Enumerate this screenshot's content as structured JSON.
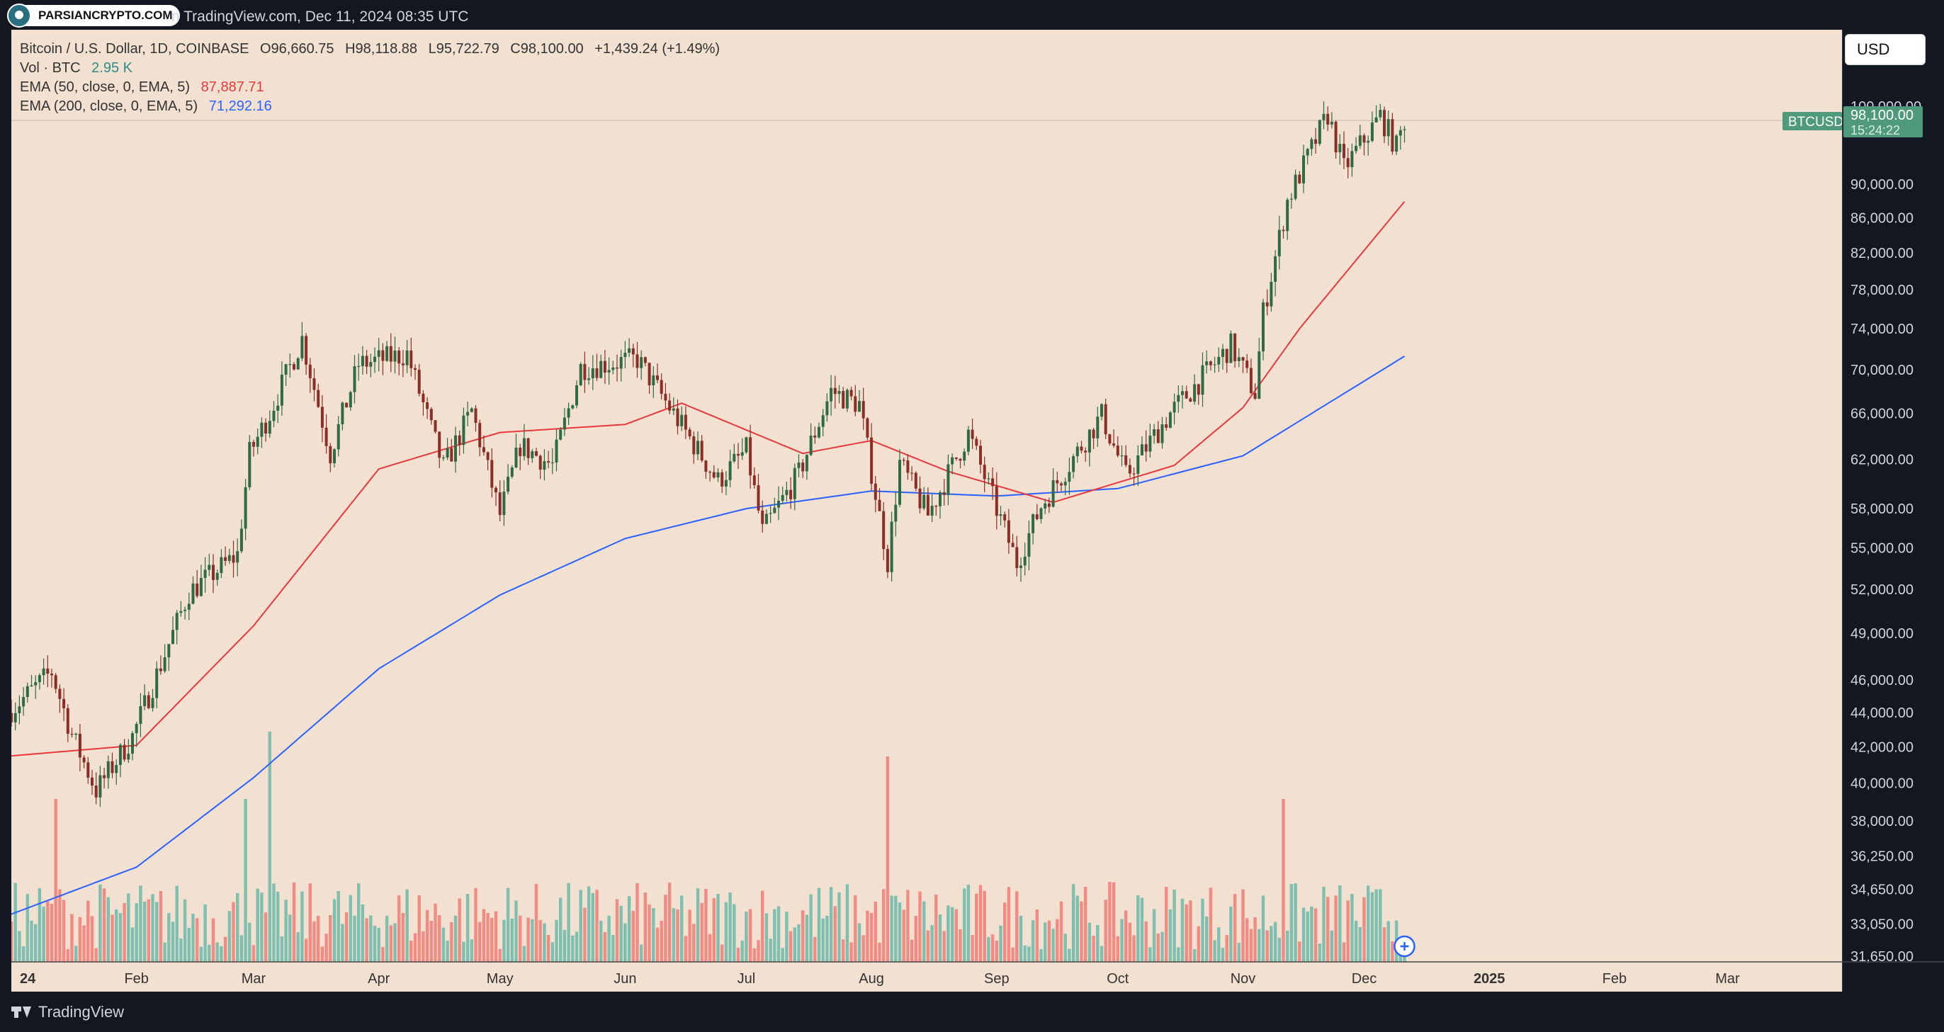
{
  "header": {
    "badge_text": "PARSIANCRYPTO.COM",
    "caption": "n TradingView.com, Dec 11, 2024 08:35 UTC"
  },
  "legend": {
    "symbol_line": "Bitcoin / U.S. Dollar, 1D, COINBASE",
    "ohlc": {
      "open": "O96,660.75",
      "high": "H98,118.88",
      "low": "L95,722.79",
      "close": "C98,100.00",
      "change": "+1,439.24 (+1.49%)"
    },
    "vol_label": "Vol · BTC",
    "vol_value": "2.95 K",
    "ema50_label": "EMA (50, close, 0, EMA, 5)",
    "ema50_value": "87,887.71",
    "ema200_label": "EMA (200, close, 0, EMA, 5)",
    "ema200_value": "71,292.16"
  },
  "currency_button": "USD",
  "price_tag": {
    "symbol": "BTCUSD",
    "price": "98,100.00",
    "countdown": "15:24:22"
  },
  "footer": {
    "brand": "TradingView"
  },
  "colors": {
    "background": "#f2e1d1",
    "up": "#26a69a",
    "down": "#ef5350",
    "candle_up": "#2e6b45",
    "candle_down": "#8b2e26",
    "ema50": "#e8383d",
    "ema200": "#2962ff",
    "vol_up": "#7fbfb0",
    "vol_down": "#f28b82",
    "tag": "#4f9a7a"
  },
  "chart_data": {
    "type": "candlestick",
    "scale": "log",
    "y_axis_ticks": [
      "100,000.00",
      "90,000.00",
      "86,000.00",
      "82,000.00",
      "78,000.00",
      "74,000.00",
      "70,000.00",
      "66,000.00",
      "62,000.00",
      "58,000.00",
      "55,000.00",
      "52,000.00",
      "49,000.00",
      "46,000.00",
      "44,000.00",
      "42,000.00",
      "40,000.00",
      "38,000.00",
      "36,250.00",
      "34,650.00",
      "33,050.00",
      "31,650.00"
    ],
    "x_axis_ticks": [
      "24",
      "Feb",
      "Mar",
      "Apr",
      "May",
      "Jun",
      "Jul",
      "Aug",
      "Sep",
      "Oct",
      "Nov",
      "Dec",
      "2025",
      "Feb",
      "Mar"
    ],
    "x_tick_bold": [
      "24",
      "2025"
    ],
    "last_price": 98100.0,
    "series_anchors": [
      {
        "date": "2024-01-01",
        "close": 44200
      },
      {
        "date": "2024-01-11",
        "close": 46500
      },
      {
        "date": "2024-01-16",
        "close": 42700
      },
      {
        "date": "2024-01-22",
        "close": 39600
      },
      {
        "date": "2024-01-31",
        "close": 42600
      },
      {
        "date": "2024-02-14",
        "close": 51800
      },
      {
        "date": "2024-02-26",
        "close": 54500
      },
      {
        "date": "2024-02-29",
        "close": 62500
      },
      {
        "date": "2024-03-05",
        "close": 66000
      },
      {
        "date": "2024-03-13",
        "close": 73000
      },
      {
        "date": "2024-03-20",
        "close": 62500
      },
      {
        "date": "2024-03-27",
        "close": 70500
      },
      {
        "date": "2024-04-08",
        "close": 71500
      },
      {
        "date": "2024-04-17",
        "close": 61300
      },
      {
        "date": "2024-04-24",
        "close": 66200
      },
      {
        "date": "2024-05-01",
        "close": 57500
      },
      {
        "date": "2024-05-06",
        "close": 63200
      },
      {
        "date": "2024-05-14",
        "close": 61500
      },
      {
        "date": "2024-05-21",
        "close": 70200
      },
      {
        "date": "2024-06-04",
        "close": 71000
      },
      {
        "date": "2024-06-12",
        "close": 66500
      },
      {
        "date": "2024-06-24",
        "close": 60200
      },
      {
        "date": "2024-07-01",
        "close": 62800
      },
      {
        "date": "2024-07-05",
        "close": 56200
      },
      {
        "date": "2024-07-14",
        "close": 60800
      },
      {
        "date": "2024-07-22",
        "close": 68000
      },
      {
        "date": "2024-07-29",
        "close": 66800
      },
      {
        "date": "2024-08-05",
        "close": 54000
      },
      {
        "date": "2024-08-08",
        "close": 61700
      },
      {
        "date": "2024-08-15",
        "close": 57500
      },
      {
        "date": "2024-08-25",
        "close": 64200
      },
      {
        "date": "2024-09-06",
        "close": 53900
      },
      {
        "date": "2024-09-12",
        "close": 58200
      },
      {
        "date": "2024-09-27",
        "close": 65800
      },
      {
        "date": "2024-10-03",
        "close": 60600
      },
      {
        "date": "2024-10-14",
        "close": 66000
      },
      {
        "date": "2024-10-29",
        "close": 72300
      },
      {
        "date": "2024-11-04",
        "close": 67800
      },
      {
        "date": "2024-11-06",
        "close": 75600
      },
      {
        "date": "2024-11-12",
        "close": 88000
      },
      {
        "date": "2024-11-22",
        "close": 98900
      },
      {
        "date": "2024-11-26",
        "close": 91900
      },
      {
        "date": "2024-12-05",
        "close": 98700
      },
      {
        "date": "2024-12-09",
        "close": 94600
      },
      {
        "date": "2024-12-11",
        "close": 98100
      }
    ],
    "ema50_anchors": [
      {
        "date": "2024-01-01",
        "value": 41500
      },
      {
        "date": "2024-02-01",
        "value": 42100
      },
      {
        "date": "2024-03-01",
        "value": 49500
      },
      {
        "date": "2024-04-01",
        "value": 61200
      },
      {
        "date": "2024-05-01",
        "value": 64300
      },
      {
        "date": "2024-06-01",
        "value": 65000
      },
      {
        "date": "2024-06-15",
        "value": 66900
      },
      {
        "date": "2024-07-15",
        "value": 62500
      },
      {
        "date": "2024-08-01",
        "value": 63600
      },
      {
        "date": "2024-08-20",
        "value": 61000
      },
      {
        "date": "2024-09-15",
        "value": 58500
      },
      {
        "date": "2024-10-15",
        "value": 61500
      },
      {
        "date": "2024-11-01",
        "value": 66500
      },
      {
        "date": "2024-11-15",
        "value": 74000
      },
      {
        "date": "2024-12-11",
        "value": 87887.71
      }
    ],
    "ema200_anchors": [
      {
        "date": "2024-01-01",
        "value": 33500
      },
      {
        "date": "2024-02-01",
        "value": 35700
      },
      {
        "date": "2024-03-01",
        "value": 40300
      },
      {
        "date": "2024-04-01",
        "value": 46700
      },
      {
        "date": "2024-05-01",
        "value": 51600
      },
      {
        "date": "2024-06-01",
        "value": 55700
      },
      {
        "date": "2024-07-01",
        "value": 58000
      },
      {
        "date": "2024-08-01",
        "value": 59400
      },
      {
        "date": "2024-09-01",
        "value": 59000
      },
      {
        "date": "2024-10-01",
        "value": 59600
      },
      {
        "date": "2024-11-01",
        "value": 62300
      },
      {
        "date": "2024-12-11",
        "value": 71292.16
      }
    ],
    "volume_spikes_btc": [
      {
        "date": "2024-01-12",
        "volume": "high"
      },
      {
        "date": "2024-02-28",
        "volume": "high"
      },
      {
        "date": "2024-03-05",
        "volume": "highest_march"
      },
      {
        "date": "2024-08-05",
        "volume": "highest"
      },
      {
        "date": "2024-11-11",
        "volume": "high"
      }
    ]
  }
}
